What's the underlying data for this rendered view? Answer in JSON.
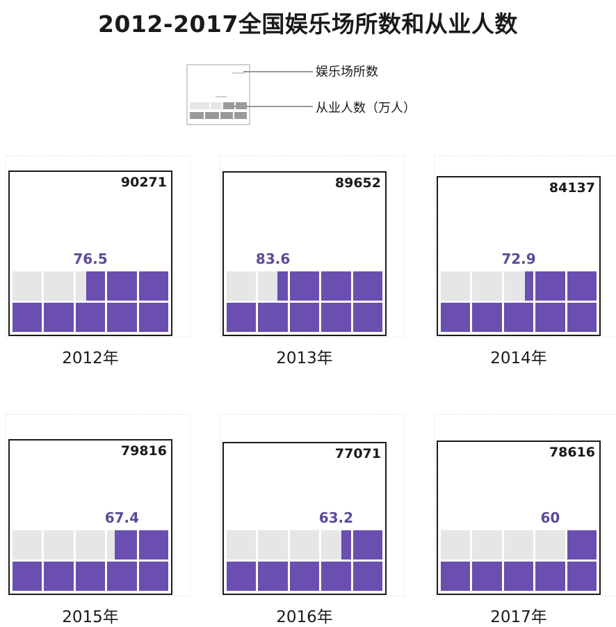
{
  "title": "2012-2017全国娱乐场所数和从业人数",
  "legend": {
    "venues_label": "娱乐场所数",
    "workers_label": "从业人数（万人）"
  },
  "colors": {
    "purple": "#6a4fb0",
    "gray": "#e6e6e6",
    "label_purple": "#5d4a99",
    "frame": "#1a1a1a"
  },
  "chart_data": {
    "type": "bar",
    "categories": [
      "2012年",
      "2013年",
      "2014年",
      "2015年",
      "2016年",
      "2017年"
    ],
    "series": [
      {
        "name": "娱乐场所数",
        "values": [
          90271,
          89652,
          84137,
          79816,
          77071,
          78616
        ]
      },
      {
        "name": "从业人数（万人）",
        "values": [
          76.5,
          83.6,
          72.9,
          67.4,
          63.2,
          60
        ]
      }
    ],
    "venue_labels": [
      "90271",
      "89652",
      "84137",
      "79816",
      "77071",
      "78616"
    ],
    "worker_labels": [
      "76.5",
      "83.6",
      "72.9",
      "67.4",
      "63.2",
      "60"
    ],
    "units_per_cell": 10
  }
}
